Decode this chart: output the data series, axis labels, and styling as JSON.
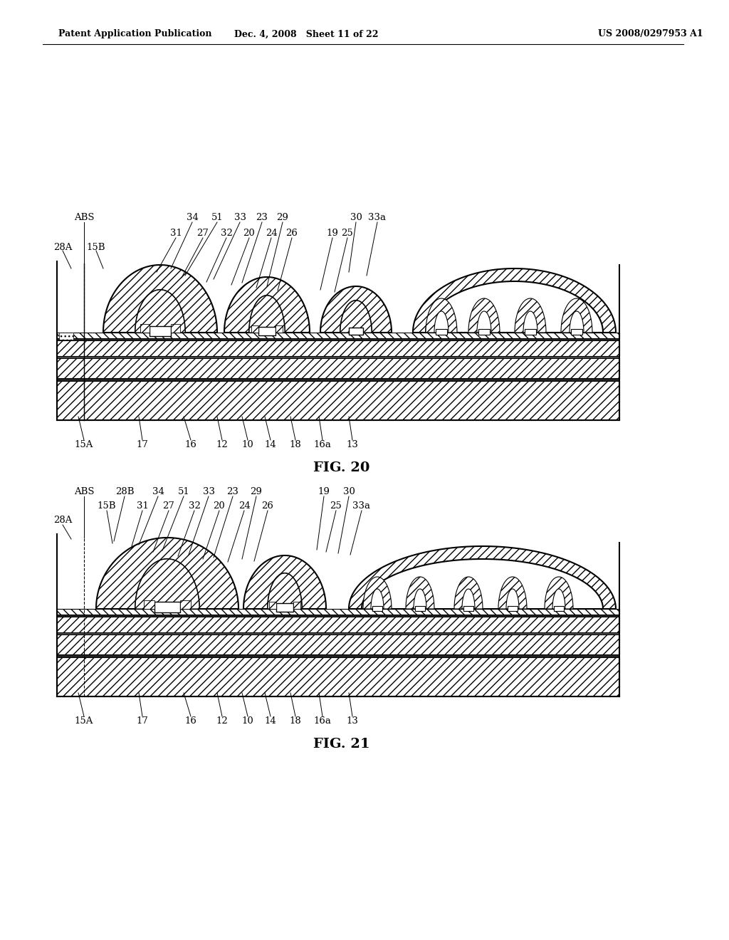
{
  "page_header_left": "Patent Application Publication",
  "page_header_mid": "Dec. 4, 2008   Sheet 11 of 22",
  "page_header_right": "US 2008/0297953 A1",
  "fig20_caption": "FIG. 20",
  "fig21_caption": "FIG. 21",
  "background_color": "#ffffff"
}
